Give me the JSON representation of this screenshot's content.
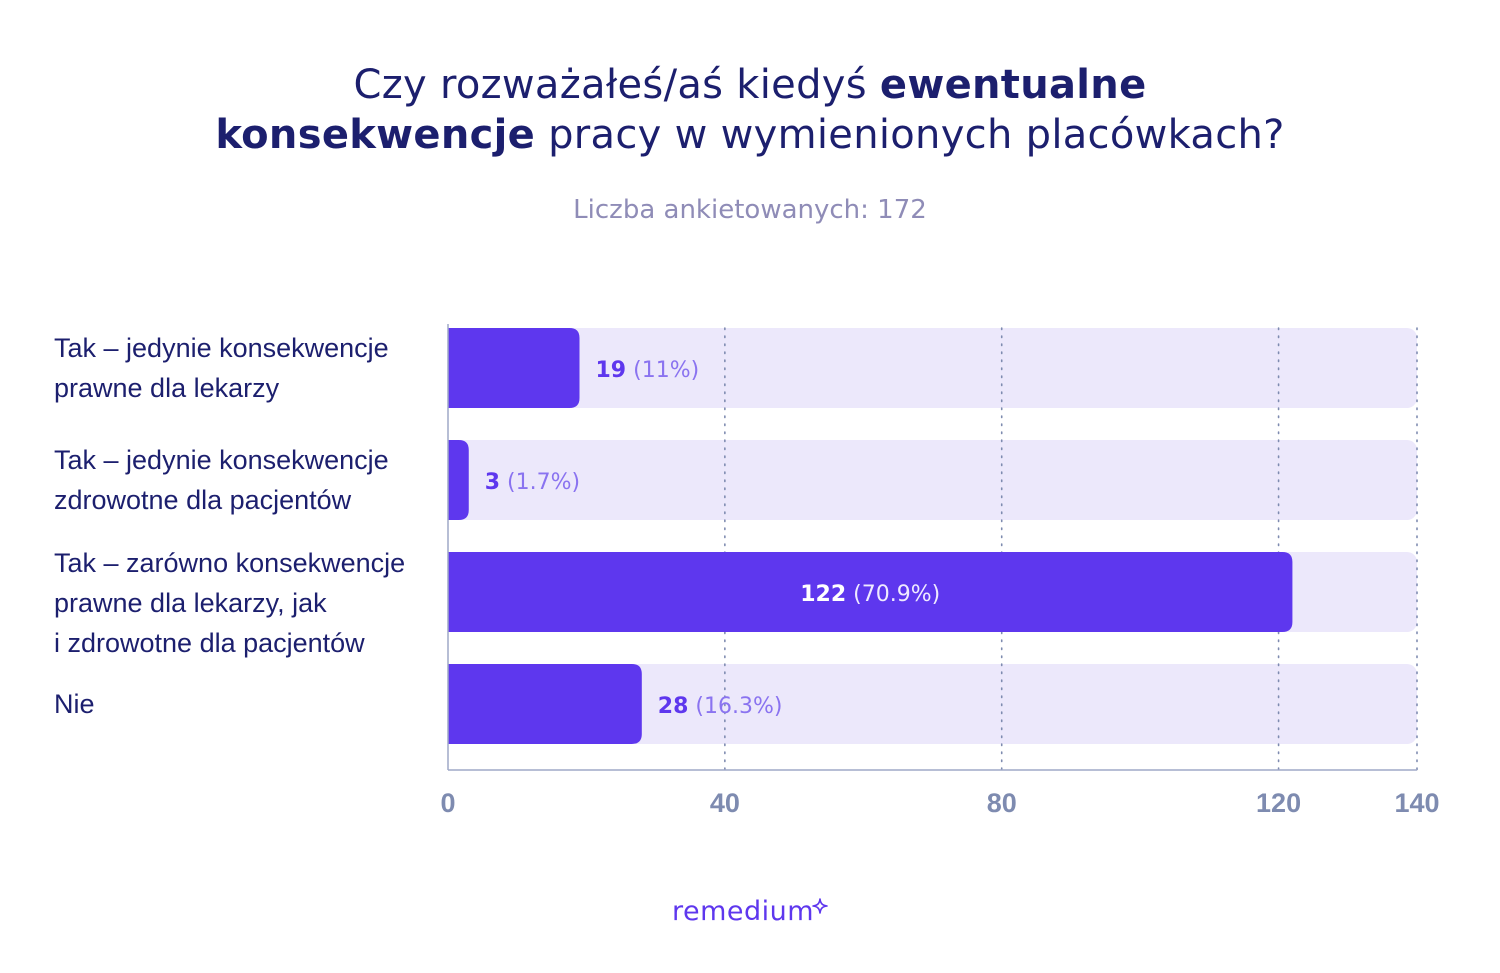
{
  "title": {
    "part1": "Czy rozważałeś/aś kiedyś ",
    "part2_bold": "ewentualne",
    "part3_bold": "konsekwencje",
    "part4": " pracy w wymienionych placówkach?"
  },
  "subtitle": "Liczba ankietowanych: 172",
  "brand": "remedium",
  "colors": {
    "bar": "#5e37ee",
    "track": "#ece8fb",
    "title": "#1c1f6e",
    "subtitle": "#8f8cb7",
    "tick": "#7e8bb0",
    "axis": "#9fa8c7"
  },
  "chart_data": {
    "type": "bar",
    "orientation": "horizontal",
    "categories": [
      "Tak – jedynie konsekwencje\nprawne dla lekarzy",
      "Tak – jedynie konsekwencje\nzdrowotne dla pacjentów",
      "Tak – zarówno konsekwencje\nprawne dla lekarzy, jak\ni zdrowotne dla pacjentów",
      "Nie"
    ],
    "values": [
      19,
      3,
      122,
      28
    ],
    "value_labels": [
      "19",
      "3",
      "122",
      "28"
    ],
    "percent_labels": [
      "(11%)",
      "(1.7%)",
      "(70.9%)",
      "(16.3%)"
    ],
    "xlim": [
      0,
      140
    ],
    "xticks": [
      0,
      40,
      80,
      120,
      140
    ],
    "xtick_labels": [
      "0",
      "40",
      "80",
      "120",
      "140"
    ],
    "grid": "vertical-dotted",
    "legend": "none"
  }
}
